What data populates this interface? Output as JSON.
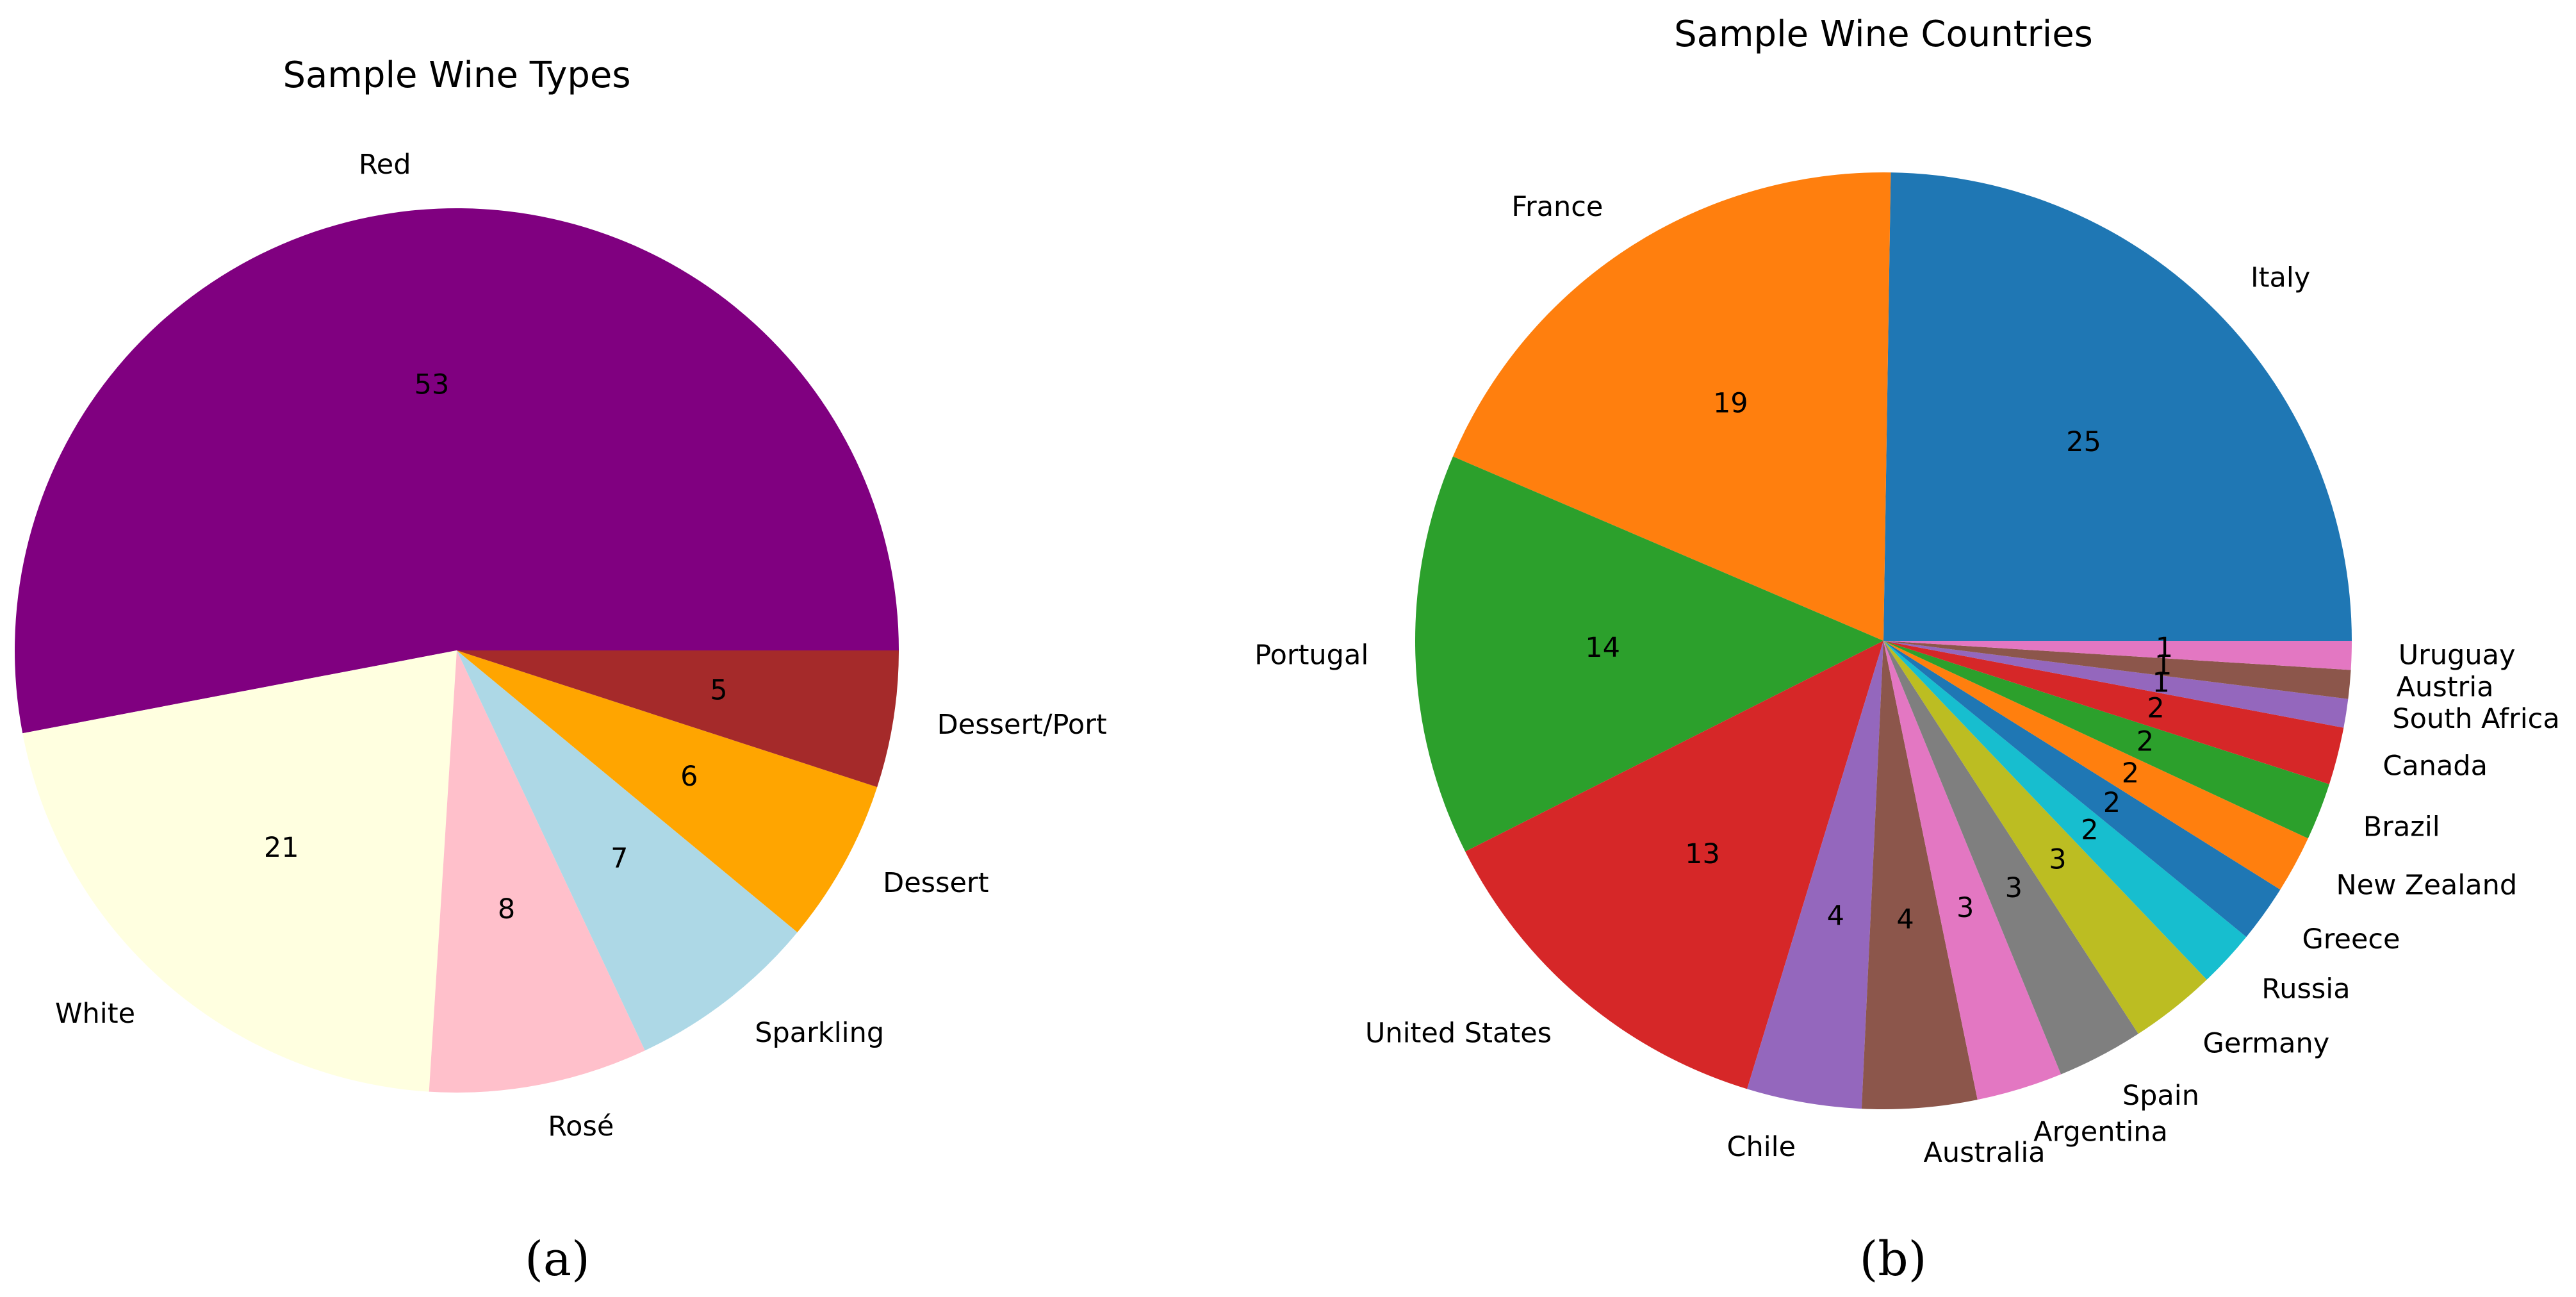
{
  "chart_data": [
    {
      "type": "pie",
      "title": "Sample Wine Types",
      "caption": "(a)",
      "start_angle_deg": 0,
      "direction": "counterclockwise",
      "categories": [
        "Red",
        "White",
        "Rosé",
        "Sparkling",
        "Dessert",
        "Dessert/Port"
      ],
      "values": [
        53,
        21,
        8,
        7,
        6,
        5
      ],
      "colors": [
        "#800080",
        "#ffffe0",
        "#ffc0cb",
        "#add8e6",
        "#ffa500",
        "#a52a2a"
      ]
    },
    {
      "type": "pie",
      "title": "Sample Wine Countries",
      "caption": "(b)",
      "start_angle_deg": 0,
      "direction": "counterclockwise",
      "categories": [
        "Italy",
        "France",
        "Portugal",
        "United States",
        "Chile",
        "Australia",
        "Argentina",
        "Spain",
        "Germany",
        "Russia",
        "Greece",
        "New Zealand",
        "Brazil",
        "Canada",
        "South Africa",
        "Austria",
        "Uruguay"
      ],
      "values": [
        25,
        19,
        14,
        13,
        4,
        4,
        3,
        3,
        3,
        2,
        2,
        2,
        2,
        2,
        1,
        1,
        1
      ],
      "colors": [
        "#1f77b4",
        "#ff7f0e",
        "#2ca02c",
        "#d62728",
        "#9467bd",
        "#8c564b",
        "#e377c2",
        "#7f7f7f",
        "#bcbd22",
        "#17becf",
        "#1f77b4",
        "#ff7f0e",
        "#2ca02c",
        "#d62728",
        "#9467bd",
        "#8c564b",
        "#e377c2"
      ]
    }
  ]
}
